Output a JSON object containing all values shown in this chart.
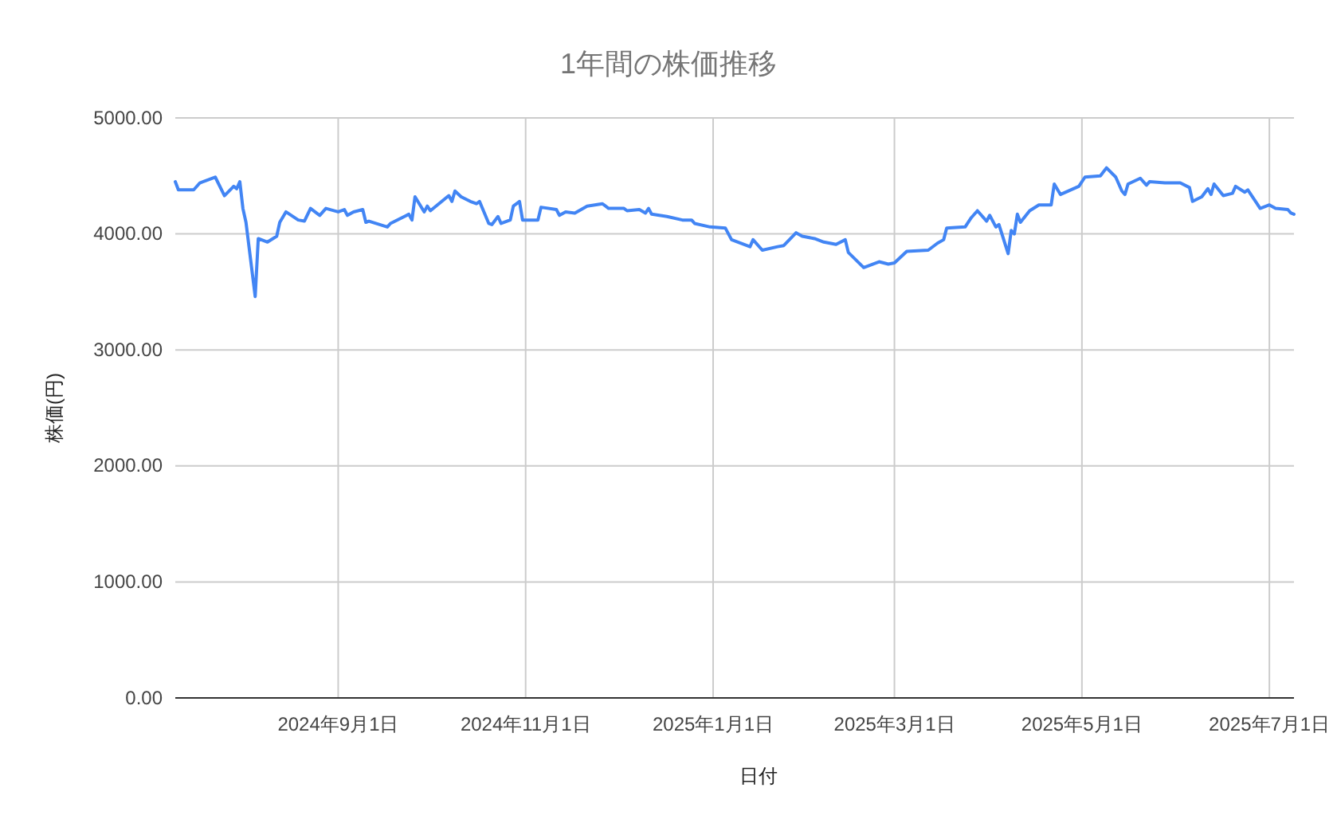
{
  "chart_data": {
    "type": "line",
    "title": "1年間の株価推移",
    "xlabel": "日付",
    "ylabel": "株価(円)",
    "x": [
      "2024-07-10",
      "2024-07-11",
      "2024-07-16",
      "2024-07-18",
      "2024-07-23",
      "2024-07-26",
      "2024-07-29",
      "2024-07-30",
      "2024-07-31",
      "2024-08-01",
      "2024-08-02",
      "2024-08-05",
      "2024-08-06",
      "2024-08-09",
      "2024-08-12",
      "2024-08-13",
      "2024-08-15",
      "2024-08-19",
      "2024-08-21",
      "2024-08-23",
      "2024-08-26",
      "2024-08-28",
      "2024-09-01",
      "2024-09-03",
      "2024-09-04",
      "2024-09-06",
      "2024-09-09",
      "2024-09-10",
      "2024-09-11",
      "2024-09-17",
      "2024-09-18",
      "2024-09-24",
      "2024-09-25",
      "2024-09-26",
      "2024-09-29",
      "2024-09-30",
      "2024-10-01",
      "2024-10-07",
      "2024-10-08",
      "2024-10-09",
      "2024-10-11",
      "2024-10-14",
      "2024-10-16",
      "2024-10-17",
      "2024-10-20",
      "2024-10-21",
      "2024-10-23",
      "2024-10-24",
      "2024-10-27",
      "2024-10-28",
      "2024-10-30",
      "2024-10-31",
      "2024-11-05",
      "2024-11-06",
      "2024-11-11",
      "2024-11-12",
      "2024-11-14",
      "2024-11-17",
      "2024-11-21",
      "2024-11-26",
      "2024-11-27",
      "2024-11-28",
      "2024-12-03",
      "2024-12-04",
      "2024-12-08",
      "2024-12-10",
      "2024-12-11",
      "2024-12-12",
      "2024-12-17",
      "2024-12-22",
      "2024-12-25",
      "2024-12-26",
      "2024-12-31",
      "2025-01-05",
      "2025-01-07",
      "2025-01-13",
      "2025-01-14",
      "2025-01-17",
      "2025-01-22",
      "2025-01-24",
      "2025-01-28",
      "2025-01-30",
      "2025-02-03",
      "2025-02-06",
      "2025-02-10",
      "2025-02-13",
      "2025-02-14",
      "2025-02-19",
      "2025-02-24",
      "2025-02-27",
      "2025-03-01",
      "2025-03-05",
      "2025-03-12",
      "2025-03-15",
      "2025-03-17",
      "2025-03-18",
      "2025-03-24",
      "2025-03-26",
      "2025-03-28",
      "2025-03-31",
      "2025-04-01",
      "2025-04-03",
      "2025-04-04",
      "2025-04-07",
      "2025-04-08",
      "2025-04-09",
      "2025-04-10",
      "2025-04-11",
      "2025-04-14",
      "2025-04-17",
      "2025-04-21",
      "2025-04-22",
      "2025-04-24",
      "2025-04-30",
      "2025-05-02",
      "2025-05-07",
      "2025-05-09",
      "2025-05-12",
      "2025-05-14",
      "2025-05-15",
      "2025-05-16",
      "2025-05-20",
      "2025-05-22",
      "2025-05-23",
      "2025-05-28",
      "2025-06-02",
      "2025-06-05",
      "2025-06-06",
      "2025-06-09",
      "2025-06-11",
      "2025-06-12",
      "2025-06-13",
      "2025-06-16",
      "2025-06-19",
      "2025-06-20",
      "2025-06-23",
      "2025-06-24",
      "2025-06-28",
      "2025-07-01",
      "2025-07-03",
      "2025-07-07",
      "2025-07-08",
      "2025-07-09"
    ],
    "series": [
      {
        "color": "#4285f4",
        "values": [
          4450,
          4380,
          4380,
          4440,
          4490,
          4330,
          4410,
          4390,
          4450,
          4220,
          4100,
          3460,
          3960,
          3930,
          3980,
          4100,
          4190,
          4120,
          4110,
          4220,
          4160,
          4220,
          4190,
          4210,
          4160,
          4190,
          4210,
          4100,
          4110,
          4060,
          4090,
          4170,
          4120,
          4320,
          4190,
          4240,
          4200,
          4330,
          4280,
          4370,
          4320,
          4280,
          4260,
          4280,
          4090,
          4080,
          4150,
          4090,
          4120,
          4240,
          4280,
          4120,
          4120,
          4230,
          4210,
          4160,
          4190,
          4180,
          4240,
          4260,
          4240,
          4220,
          4220,
          4200,
          4210,
          4180,
          4220,
          4170,
          4150,
          4120,
          4120,
          4090,
          4060,
          4050,
          3950,
          3890,
          3950,
          3860,
          3890,
          3900,
          4010,
          3980,
          3960,
          3930,
          3910,
          3950,
          3840,
          3710,
          3760,
          3740,
          3750,
          3850,
          3860,
          3920,
          3950,
          4050,
          4060,
          4140,
          4200,
          4110,
          4160,
          4060,
          4080,
          3830,
          4030,
          4000,
          4170,
          4100,
          4200,
          4250,
          4250,
          4430,
          4340,
          4410,
          4490,
          4500,
          4570,
          4490,
          4370,
          4340,
          4430,
          4480,
          4420,
          4450,
          4440,
          4440,
          4400,
          4280,
          4320,
          4390,
          4340,
          4430,
          4330,
          4350,
          4410,
          4360,
          4380,
          4220,
          4250,
          4220,
          4210,
          4180,
          4170
        ]
      }
    ],
    "xlim": [
      "2024-07-10",
      "2025-07-09"
    ],
    "xticks": [
      {
        "value": "2024-09-01",
        "label": "2024年9月1日"
      },
      {
        "value": "2024-11-01",
        "label": "2024年11月1日"
      },
      {
        "value": "2025-01-01",
        "label": "2025年1月1日"
      },
      {
        "value": "2025-03-01",
        "label": "2025年3月1日"
      },
      {
        "value": "2025-05-01",
        "label": "2025年5月1日"
      },
      {
        "value": "2025-07-01",
        "label": "2025年7月1日"
      }
    ],
    "ylim": [
      0,
      5000
    ],
    "yticks": [
      {
        "value": 0,
        "label": "0.00"
      },
      {
        "value": 1000,
        "label": "1000.00"
      },
      {
        "value": 2000,
        "label": "2000.00"
      },
      {
        "value": 3000,
        "label": "3000.00"
      },
      {
        "value": 4000,
        "label": "4000.00"
      },
      {
        "value": 5000,
        "label": "5000.00"
      }
    ],
    "grid": true,
    "marker": "none",
    "line_style": "solid"
  }
}
